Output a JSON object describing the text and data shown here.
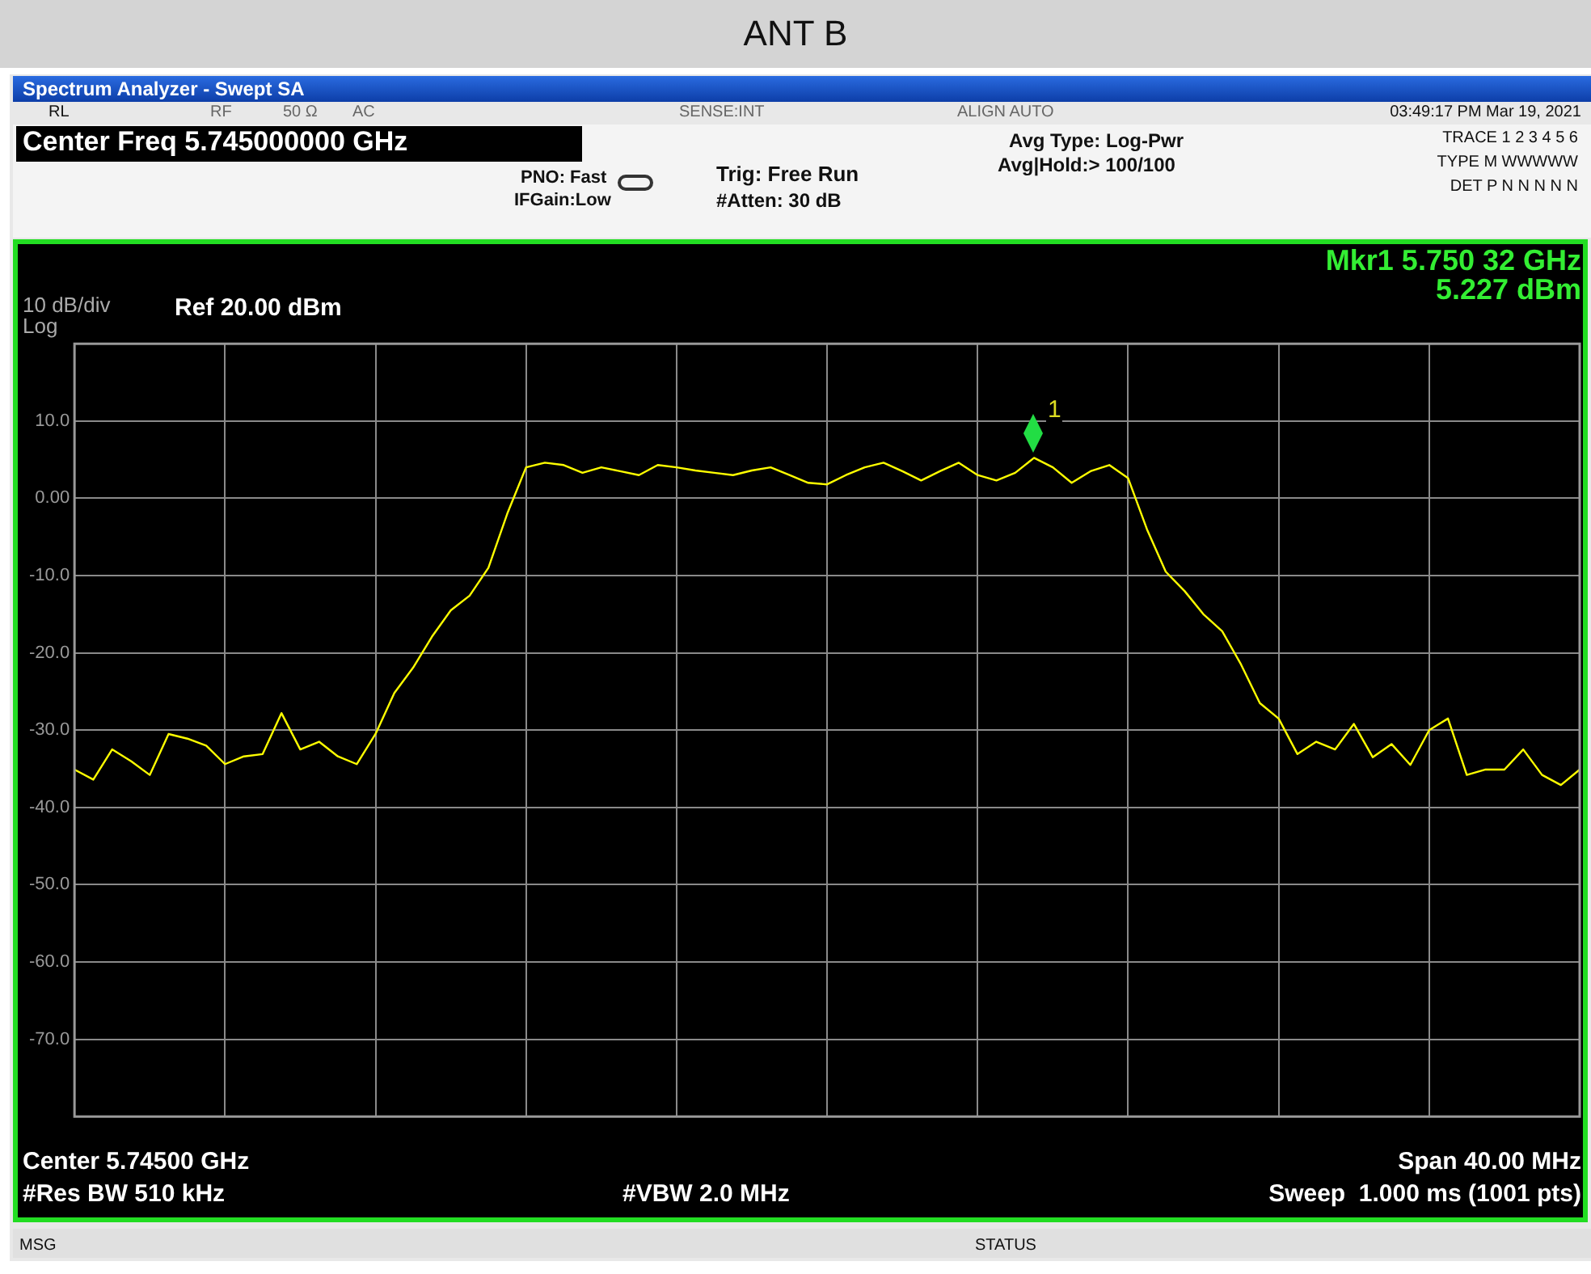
{
  "chart_data": {
    "type": "line",
    "title": "ANT B",
    "categories": [
      null,
      null,
      null,
      null,
      null,
      null,
      null,
      null,
      null,
      null,
      null,
      null,
      null,
      null,
      null,
      null,
      null,
      null,
      null,
      null,
      null,
      null,
      null,
      null,
      null,
      null,
      null,
      null,
      null,
      null,
      null,
      null,
      null,
      null,
      null,
      null,
      null,
      null,
      null,
      null,
      null,
      null,
      null,
      null,
      null,
      null,
      null,
      null,
      null,
      null,
      null,
      null,
      null,
      null,
      null,
      null,
      null,
      null,
      null,
      null,
      null,
      null,
      null,
      null,
      null,
      null,
      null,
      null,
      null,
      null,
      null,
      null,
      null,
      null,
      null,
      null,
      null,
      null,
      null,
      null,
      null
    ],
    "ylim": [
      -80,
      20
    ],
    "yticks": [
      {
        "value": 10,
        "label": "10.0"
      },
      {
        "value": 0,
        "label": "0.00"
      },
      {
        "value": -10,
        "label": "-10.0"
      },
      {
        "value": -20,
        "label": "-20.0"
      },
      {
        "value": -30,
        "label": "-30.0"
      },
      {
        "value": -40,
        "label": "-40.0"
      },
      {
        "value": -50,
        "label": "-50.0"
      },
      {
        "value": -60,
        "label": "-60.0"
      },
      {
        "value": -70,
        "label": "-70.0"
      }
    ],
    "grid": true,
    "marker": "none",
    "series": [
      {
        "color": "#ffff00",
        "values": [
          -35.1,
          -36.4,
          -32.5,
          -34,
          -35.8,
          -30.5,
          -31.1,
          -32,
          -34.4,
          -33.4,
          -33.1,
          -27.8,
          -32.5,
          -31.5,
          -33.4,
          -34.4,
          -30.5,
          -25.2,
          -21.9,
          -17.9,
          -14.5,
          -12.6,
          -9,
          -2,
          4,
          4.6,
          4.3,
          3.3,
          4,
          3.5,
          3,
          4.3,
          4,
          3.6,
          3.3,
          3,
          3.6,
          4,
          3,
          2,
          1.8,
          3,
          4,
          4.6,
          3.5,
          2.3,
          3.5,
          4.6,
          3,
          2.3,
          3.3,
          5.227,
          4,
          2,
          3.5,
          4.3,
          2.6,
          -4,
          -9.5,
          -12,
          -15,
          -17.2,
          -21.5,
          -26.5,
          -28.5,
          -33.1,
          -31.5,
          -32.5,
          -29.2,
          -33.5,
          -31.8,
          -34.5,
          -30,
          -28.5,
          -35.8,
          -35.1,
          -35.1,
          -32.5,
          -35.8,
          -37.1,
          -35.1
        ]
      }
    ],
    "annotations": [
      "Spectrum Analyzer - Swept SA",
      "RL",
      "RF",
      "50 Ω",
      "AC",
      "SENSE:INT",
      "ALIGN AUTO",
      "03:49:17 PM Mar 19, 2021",
      "Center Freq 5.745000000 GHz",
      "PNO: Fast",
      "IFGain:Low",
      "Trig: Free Run",
      "#Atten: 30 dB",
      "Avg Type: Log-Pwr",
      "Avg|Hold:> 100/100",
      "TRACE 1 2 3 4 5 6",
      "TYPE M WWWWW",
      "DET P N N N N N",
      "10 dB/div",
      "Log",
      "Ref 20.00 dBm",
      "Mkr1 5.750 32 GHz",
      "5.227 dBm",
      "1",
      "Center 5.74500 GHz",
      "Span 40.00 MHz",
      "#Res BW 510 kHz",
      "#VBW 2.0 MHz",
      "Sweep  1.000 ms (1001 pts)",
      "MSG",
      "STATUS"
    ]
  }
}
